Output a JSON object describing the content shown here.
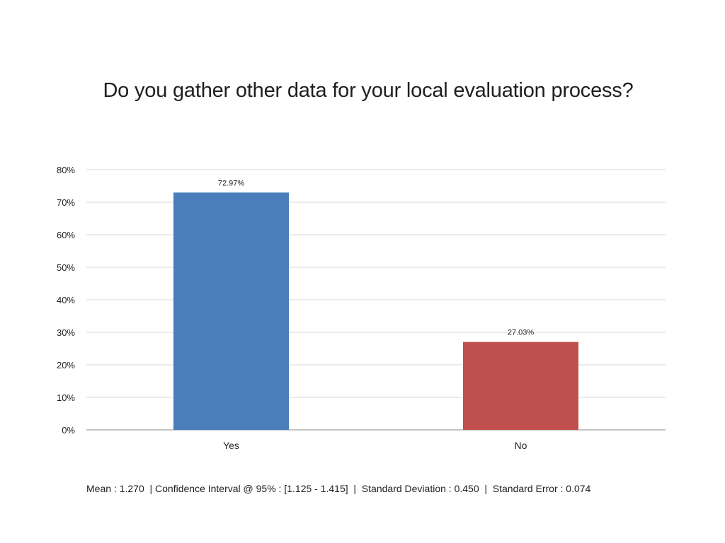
{
  "title": "Do you gather other data for your local evaluation process?",
  "chart_data": {
    "type": "bar",
    "categories": [
      "Yes",
      "No"
    ],
    "values": [
      72.97,
      27.03
    ],
    "data_labels": [
      "72.97%",
      "27.03%"
    ],
    "bar_colors": [
      "#4a7ebb",
      "#c0504d"
    ],
    "ylim": [
      0,
      80
    ],
    "yticks": [
      0,
      10,
      20,
      30,
      40,
      50,
      60,
      70,
      80
    ],
    "ytick_labels": [
      "0%",
      "10%",
      "20%",
      "30%",
      "40%",
      "50%",
      "60%",
      "70%",
      "80%"
    ],
    "grid": true,
    "legend": "none"
  },
  "footer": {
    "stats": "Mean : 1.270  | Confidence Interval @ 95% : [1.125 - 1.415]  |  Standard Deviation : 0.450  |  Standard Error : 0.074"
  }
}
